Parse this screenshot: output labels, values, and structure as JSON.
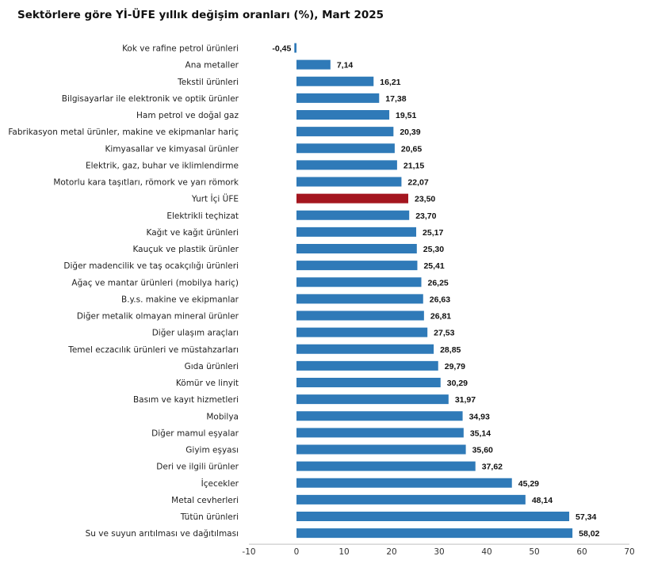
{
  "title": "Sektörlere göre Yİ-ÜFE yıllık değişim oranları (%), Mart 2025",
  "colors": {
    "bar": "#2f7ab8",
    "highlight": "#a4161f",
    "axis": "#bfbfbf"
  },
  "chart_data": {
    "type": "bar",
    "orientation": "horizontal",
    "title": "Sektörlere göre Yİ-ÜFE yıllık değişim oranları (%), Mart 2025",
    "xlabel": "",
    "ylabel": "",
    "xlim": [
      -10,
      70
    ],
    "xticks": [
      -10,
      0,
      10,
      20,
      30,
      40,
      50,
      60,
      70
    ],
    "xtick_labels": [
      "-10",
      "0",
      "10",
      "20",
      "30",
      "40",
      "50",
      "60",
      "70"
    ],
    "grid": false,
    "legend": "none",
    "highlight_category": "Yurt İçi ÜFE",
    "categories": [
      "Kok ve rafine petrol ürünleri",
      "Ana metaller",
      "Tekstil ürünleri",
      "Bilgisayarlar ile elektronik ve optik ürünler",
      "Ham petrol ve doğal gaz",
      "Fabrikasyon metal ürünler, makine ve ekipmanlar hariç",
      "Kimyasallar ve kimyasal ürünler",
      "Elektrik, gaz, buhar ve iklimlendirme",
      "Motorlu kara taşıtları, römork ve yarı römork",
      "Yurt İçi ÜFE",
      "Elektrikli teçhizat",
      "Kağıt ve kağıt ürünleri",
      "Kauçuk ve plastik ürünler",
      "Diğer madencilik ve taş ocakçılığı ürünleri",
      "Ağaç ve mantar ürünleri (mobilya hariç)",
      "B.y.s. makine ve ekipmanlar",
      "Diğer metalik olmayan mineral ürünler",
      "Diğer ulaşım araçları",
      "Temel eczacılık ürünleri ve müstahzarları",
      "Gıda ürünleri",
      "Kömür ve linyit",
      "Basım ve kayıt hizmetleri",
      "Mobilya",
      "Diğer mamul eşyalar",
      "Giyim eşyası",
      "Deri ve ilgili ürünler",
      "İçecekler",
      "Metal cevherleri",
      "Tütün ürünleri",
      "Su ve suyun arıtılması ve dağıtılması"
    ],
    "values": [
      -0.45,
      7.14,
      16.21,
      17.38,
      19.51,
      20.39,
      20.65,
      21.15,
      22.07,
      23.5,
      23.7,
      25.17,
      25.3,
      25.41,
      26.25,
      26.63,
      26.81,
      27.53,
      28.85,
      29.79,
      30.29,
      31.97,
      34.93,
      35.14,
      35.6,
      37.62,
      45.29,
      48.14,
      57.34,
      58.02
    ],
    "value_labels": [
      "-0,45",
      "7,14",
      "16,21",
      "17,38",
      "19,51",
      "20,39",
      "20,65",
      "21,15",
      "22,07",
      "23,50",
      "23,70",
      "25,17",
      "25,30",
      "25,41",
      "26,25",
      "26,63",
      "26,81",
      "27,53",
      "28,85",
      "29,79",
      "30,29",
      "31,97",
      "34,93",
      "35,14",
      "35,60",
      "37,62",
      "45,29",
      "48,14",
      "57,34",
      "58,02"
    ]
  }
}
